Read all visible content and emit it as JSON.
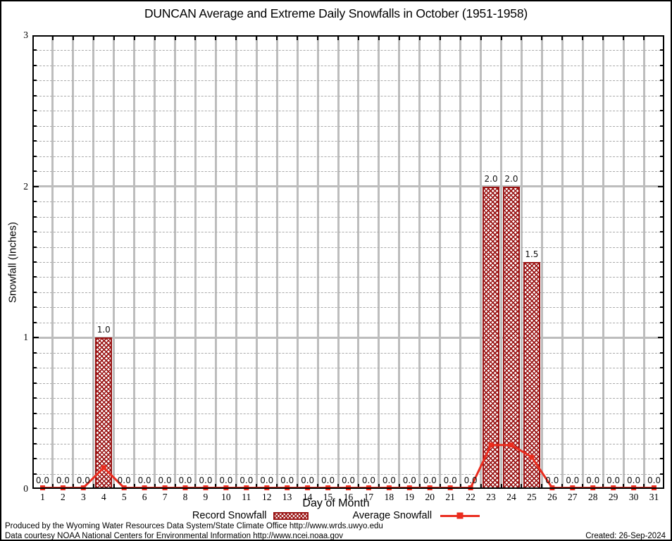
{
  "title": "DUNCAN Average and Extreme Daily Snowfalls in October (1951-1958)",
  "chart_data": {
    "type": "bar",
    "categories": [
      "1",
      "2",
      "3",
      "4",
      "5",
      "6",
      "7",
      "8",
      "9",
      "10",
      "11",
      "12",
      "13",
      "14",
      "15",
      "16",
      "17",
      "18",
      "19",
      "20",
      "21",
      "22",
      "23",
      "24",
      "25",
      "26",
      "27",
      "28",
      "29",
      "30",
      "31"
    ],
    "series": [
      {
        "name": "Record Snowfall",
        "type": "bar",
        "values": [
          0,
          0,
          0,
          1.0,
          0,
          0,
          0,
          0,
          0,
          0,
          0,
          0,
          0,
          0,
          0,
          0,
          0,
          0,
          0,
          0,
          0,
          0,
          2.0,
          2.0,
          1.5,
          0,
          0,
          0,
          0,
          0,
          0
        ]
      },
      {
        "name": "Average Snowfall",
        "type": "line",
        "values": [
          0,
          0,
          0,
          0.14,
          0,
          0,
          0,
          0,
          0,
          0,
          0,
          0,
          0,
          0,
          0,
          0,
          0,
          0,
          0,
          0,
          0,
          0,
          0.29,
          0.29,
          0.21,
          0,
          0,
          0,
          0,
          0,
          0
        ]
      }
    ],
    "bar_value_labels": [
      "0.0",
      "0.0",
      "0.0",
      "1.0",
      "0.0",
      "0.0",
      "0.0",
      "0.0",
      "0.0",
      "0.0",
      "0.0",
      "0.0",
      "0.0",
      "0.0",
      "0.0",
      "0.0",
      "0.0",
      "0.0",
      "0.0",
      "0.0",
      "0.0",
      "0.0",
      "2.0",
      "2.0",
      "1.5",
      "0.0",
      "0.0",
      "0.0",
      "0.0",
      "0.0",
      "0.0"
    ],
    "xlabel": "Day of Month",
    "ylabel": "Snowfall (Inches)",
    "ylim": [
      0,
      3
    ],
    "yticks": [
      0,
      1,
      2,
      3
    ],
    "minor_ytick_step": 0.1,
    "grid": "vertical solid per-day; horizontal dashed every 0.1, solid at integers",
    "legend_position": "bottom",
    "colors": {
      "record_bar": "#991212",
      "average_line": "#ea2c1e",
      "gridline": "#bdbdbd"
    }
  },
  "legend": {
    "record_label": "Record Snowfall",
    "average_label": "Average Snowfall"
  },
  "footer": {
    "line1": "Produced by the Wyoming Water Resources Data System/State Climate Office http://www.wrds.uwyo.edu",
    "line2": "Data courtesy NOAA National Centers for Environmental Information http://www.ncei.noaa.gov",
    "created": "Created: 26-Sep-2024"
  }
}
